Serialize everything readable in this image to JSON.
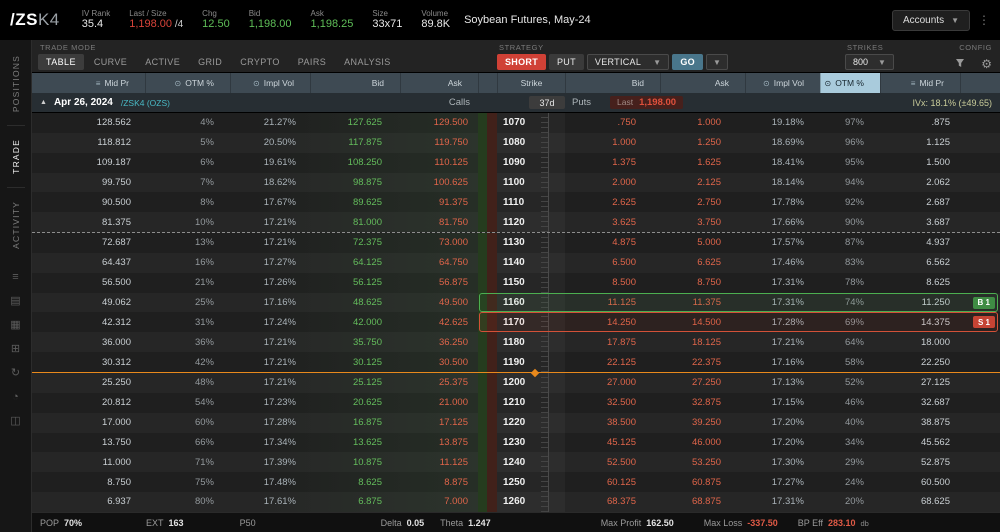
{
  "topbar": {
    "symbol_prefix": "/ZS",
    "symbol_suffix": "K4",
    "stats": [
      {
        "label": "IV Rank",
        "value": "35.4"
      },
      {
        "label": "Last / Size",
        "value": "1,198.00",
        "suffix": " /4"
      },
      {
        "label": "Chg",
        "value": "12.50"
      },
      {
        "label": "Bid",
        "value": "1,198.00"
      },
      {
        "label": "Ask",
        "value": "1,198.25"
      },
      {
        "label": "Size",
        "value": "33x71"
      },
      {
        "label": "Volume",
        "value": "89.8K"
      }
    ],
    "instrument": "Soybean Futures, May-24",
    "accounts_label": "Accounts"
  },
  "sidebar": {
    "tabs": [
      {
        "label": "POSITIONS",
        "active": false
      },
      {
        "label": "TRADE",
        "active": true
      },
      {
        "label": "ACTIVITY",
        "active": false
      }
    ]
  },
  "toolbar": {
    "trade_mode_label": "TRADE MODE",
    "tabs": [
      "TABLE",
      "CURVE",
      "ACTIVE",
      "GRID",
      "CRYPTO",
      "PAIRS",
      "ANALYSIS"
    ],
    "active_tab": "TABLE",
    "strategy_label": "STRATEGY",
    "side_button": "SHORT",
    "type_button": "PUT",
    "strategy_select": "VERTICAL",
    "go_button": "GO",
    "strikes_label": "STRIKES",
    "strikes_value": "800",
    "config_label": "CONFIG"
  },
  "headers": {
    "call": [
      "Mid Pr",
      "OTM %",
      "Impl Vol",
      "Bid",
      "Ask"
    ],
    "strike": "Strike",
    "put": [
      "Bid",
      "Ask",
      "Impl Vol",
      "OTM %",
      "Mid Pr"
    ]
  },
  "expiry": {
    "date": "Apr 26, 2024",
    "series": "/ZSK4 (OZS)",
    "calls_label": "Calls",
    "dte": "37d",
    "puts_label": "Puts",
    "last_label": "Last",
    "last_value": "1,198.00",
    "ivx": "IVx: 18.1% (±49.65)"
  },
  "chain": {
    "rows": [
      {
        "c_mid": "128.562",
        "c_otm": "4%",
        "c_iv": "21.27%",
        "c_bid": "127.625",
        "c_ask": "129.500",
        "strike": "1070",
        "p_bid": ".750",
        "p_ask": "1.000",
        "p_iv": "19.18%",
        "p_otm": "97%",
        "p_mid": ".875"
      },
      {
        "c_mid": "118.812",
        "c_otm": "5%",
        "c_iv": "20.50%",
        "c_bid": "117.875",
        "c_ask": "119.750",
        "strike": "1080",
        "p_bid": "1.000",
        "p_ask": "1.250",
        "p_iv": "18.69%",
        "p_otm": "96%",
        "p_mid": "1.125"
      },
      {
        "c_mid": "109.187",
        "c_otm": "6%",
        "c_iv": "19.61%",
        "c_bid": "108.250",
        "c_ask": "110.125",
        "strike": "1090",
        "p_bid": "1.375",
        "p_ask": "1.625",
        "p_iv": "18.41%",
        "p_otm": "95%",
        "p_mid": "1.500"
      },
      {
        "c_mid": "99.750",
        "c_otm": "7%",
        "c_iv": "18.62%",
        "c_bid": "98.875",
        "c_ask": "100.625",
        "strike": "1100",
        "p_bid": "2.000",
        "p_ask": "2.125",
        "p_iv": "18.14%",
        "p_otm": "94%",
        "p_mid": "2.062"
      },
      {
        "c_mid": "90.500",
        "c_otm": "8%",
        "c_iv": "17.67%",
        "c_bid": "89.625",
        "c_ask": "91.375",
        "strike": "1110",
        "p_bid": "2.625",
        "p_ask": "2.750",
        "p_iv": "17.78%",
        "p_otm": "92%",
        "p_mid": "2.687"
      },
      {
        "c_mid": "81.375",
        "c_otm": "10%",
        "c_iv": "17.21%",
        "c_bid": "81.000",
        "c_ask": "81.750",
        "strike": "1120",
        "p_bid": "3.625",
        "p_ask": "3.750",
        "p_iv": "17.66%",
        "p_otm": "90%",
        "p_mid": "3.687",
        "divider": "dashed"
      },
      {
        "c_mid": "72.687",
        "c_otm": "13%",
        "c_iv": "17.21%",
        "c_bid": "72.375",
        "c_ask": "73.000",
        "strike": "1130",
        "p_bid": "4.875",
        "p_ask": "5.000",
        "p_iv": "17.57%",
        "p_otm": "87%",
        "p_mid": "4.937"
      },
      {
        "c_mid": "64.437",
        "c_otm": "16%",
        "c_iv": "17.27%",
        "c_bid": "64.125",
        "c_ask": "64.750",
        "strike": "1140",
        "p_bid": "6.500",
        "p_ask": "6.625",
        "p_iv": "17.46%",
        "p_otm": "83%",
        "p_mid": "6.562"
      },
      {
        "c_mid": "56.500",
        "c_otm": "21%",
        "c_iv": "17.26%",
        "c_bid": "56.125",
        "c_ask": "56.875",
        "strike": "1150",
        "p_bid": "8.500",
        "p_ask": "8.750",
        "p_iv": "17.31%",
        "p_otm": "78%",
        "p_mid": "8.625"
      },
      {
        "c_mid": "49.062",
        "c_otm": "25%",
        "c_iv": "17.16%",
        "c_bid": "48.625",
        "c_ask": "49.500",
        "strike": "1160",
        "p_bid": "11.125",
        "p_ask": "11.375",
        "p_iv": "17.31%",
        "p_otm": "74%",
        "p_mid": "11.250",
        "selected": "buy",
        "badge": "B 1"
      },
      {
        "c_mid": "42.312",
        "c_otm": "31%",
        "c_iv": "17.24%",
        "c_bid": "42.000",
        "c_ask": "42.625",
        "strike": "1170",
        "p_bid": "14.250",
        "p_ask": "14.500",
        "p_iv": "17.28%",
        "p_otm": "69%",
        "p_mid": "14.375",
        "selected": "sell",
        "badge": "S 1"
      },
      {
        "c_mid": "36.000",
        "c_otm": "36%",
        "c_iv": "17.21%",
        "c_bid": "35.750",
        "c_ask": "36.250",
        "strike": "1180",
        "p_bid": "17.875",
        "p_ask": "18.125",
        "p_iv": "17.21%",
        "p_otm": "64%",
        "p_mid": "18.000"
      },
      {
        "c_mid": "30.312",
        "c_otm": "42%",
        "c_iv": "17.21%",
        "c_bid": "30.125",
        "c_ask": "30.500",
        "strike": "1190",
        "p_bid": "22.125",
        "p_ask": "22.375",
        "p_iv": "17.16%",
        "p_otm": "58%",
        "p_mid": "22.250",
        "divider": "price"
      },
      {
        "c_mid": "25.250",
        "c_otm": "48%",
        "c_iv": "17.21%",
        "c_bid": "25.125",
        "c_ask": "25.375",
        "strike": "1200",
        "p_bid": "27.000",
        "p_ask": "27.250",
        "p_iv": "17.13%",
        "p_otm": "52%",
        "p_mid": "27.125"
      },
      {
        "c_mid": "20.812",
        "c_otm": "54%",
        "c_iv": "17.23%",
        "c_bid": "20.625",
        "c_ask": "21.000",
        "strike": "1210",
        "p_bid": "32.500",
        "p_ask": "32.875",
        "p_iv": "17.15%",
        "p_otm": "46%",
        "p_mid": "32.687"
      },
      {
        "c_mid": "17.000",
        "c_otm": "60%",
        "c_iv": "17.28%",
        "c_bid": "16.875",
        "c_ask": "17.125",
        "strike": "1220",
        "p_bid": "38.500",
        "p_ask": "39.250",
        "p_iv": "17.20%",
        "p_otm": "40%",
        "p_mid": "38.875"
      },
      {
        "c_mid": "13.750",
        "c_otm": "66%",
        "c_iv": "17.34%",
        "c_bid": "13.625",
        "c_ask": "13.875",
        "strike": "1230",
        "p_bid": "45.125",
        "p_ask": "46.000",
        "p_iv": "17.20%",
        "p_otm": "34%",
        "p_mid": "45.562"
      },
      {
        "c_mid": "11.000",
        "c_otm": "71%",
        "c_iv": "17.39%",
        "c_bid": "10.875",
        "c_ask": "11.125",
        "strike": "1240",
        "p_bid": "52.500",
        "p_ask": "53.250",
        "p_iv": "17.30%",
        "p_otm": "29%",
        "p_mid": "52.875"
      },
      {
        "c_mid": "8.750",
        "c_otm": "75%",
        "c_iv": "17.48%",
        "c_bid": "8.625",
        "c_ask": "8.875",
        "strike": "1250",
        "p_bid": "60.125",
        "p_ask": "60.875",
        "p_iv": "17.27%",
        "p_otm": "24%",
        "p_mid": "60.500"
      },
      {
        "c_mid": "6.937",
        "c_otm": "80%",
        "c_iv": "17.61%",
        "c_bid": "6.875",
        "c_ask": "7.000",
        "strike": "1260",
        "p_bid": "68.375",
        "p_ask": "68.875",
        "p_iv": "17.31%",
        "p_otm": "20%",
        "p_mid": "68.625"
      }
    ]
  },
  "footer": {
    "items": [
      {
        "label": "POP",
        "value": "70%"
      },
      {
        "label": "EXT",
        "value": "163"
      },
      {
        "label": "P50",
        "value": ""
      },
      {
        "label": "Delta",
        "value": "0.05"
      },
      {
        "label": "Theta",
        "value": "1.247"
      },
      {
        "label": "Max Profit",
        "value": "162.50"
      },
      {
        "label": "Max Loss",
        "value": "-337.50"
      },
      {
        "label": "BP Eff",
        "value": "283.10",
        "suffix": "db"
      }
    ]
  }
}
